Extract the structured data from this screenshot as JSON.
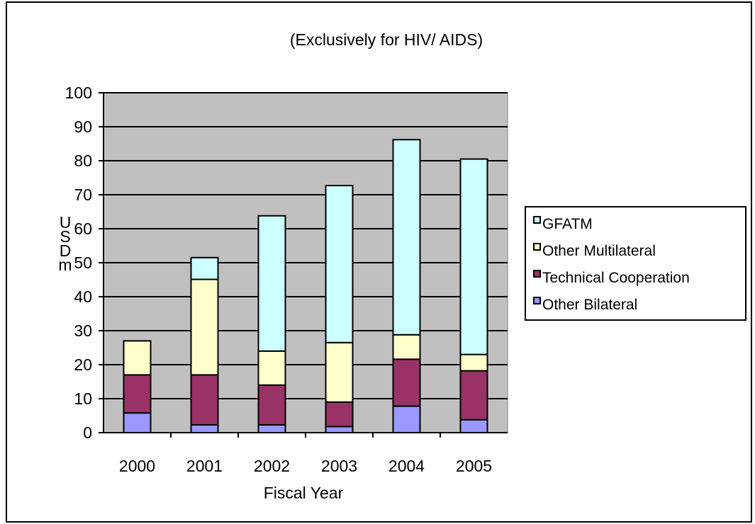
{
  "chart_data": {
    "type": "bar",
    "stacked": true,
    "title": "(Exclusively for HIV/ AIDS)",
    "xlabel": "Fiscal Year",
    "ylabel": "USD m",
    "categories": [
      "2000",
      "2001",
      "2002",
      "2003",
      "2004",
      "2005"
    ],
    "ylim": [
      0,
      100
    ],
    "yticks": [
      0,
      10,
      20,
      30,
      40,
      50,
      60,
      70,
      80,
      90,
      100
    ],
    "grid": true,
    "legend_position": "right",
    "series": [
      {
        "name": "Other Bilateral",
        "color": "#9999ff",
        "values": [
          5.8,
          2.3,
          2.3,
          1.8,
          7.8,
          3.8
        ]
      },
      {
        "name": "Technical Cooperation",
        "color": "#993366",
        "values": [
          11.2,
          14.7,
          11.7,
          7.2,
          13.8,
          14.4
        ]
      },
      {
        "name": "Other Multilateral",
        "color": "#ffffcc",
        "values": [
          10.0,
          28.1,
          10.0,
          17.5,
          7.2,
          4.8
        ]
      },
      {
        "name": "GFATM",
        "color": "#ccffff",
        "values": [
          0,
          6.4,
          39.8,
          46.2,
          57.4,
          57.5
        ]
      }
    ],
    "legend_order": [
      "GFATM",
      "Other Multilateral",
      "Technical Cooperation",
      "Other Bilateral"
    ],
    "plot_background": "#c0c0c0"
  }
}
